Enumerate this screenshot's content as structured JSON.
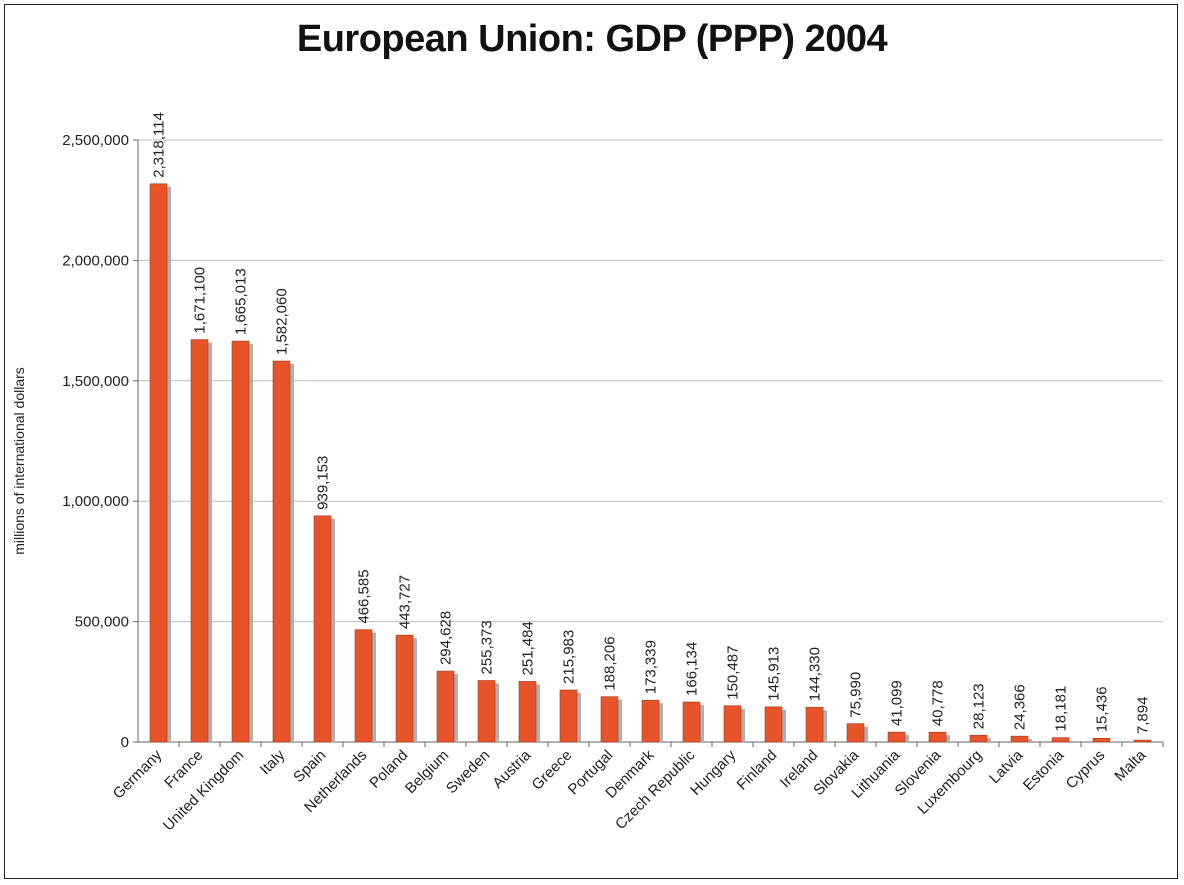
{
  "chart_data": {
    "type": "bar",
    "title": "European Union: GDP (PPP) 2004",
    "xlabel": "",
    "ylabel": "millions of international dollars",
    "ylim": [
      0,
      2500000
    ],
    "yticks": [
      0,
      500000,
      1000000,
      1500000,
      2000000,
      2500000
    ],
    "ytick_labels": [
      "0",
      "500,000",
      "1,000,000",
      "1,500,000",
      "2,000,000",
      "2,500,000"
    ],
    "grid": true,
    "bar_color": "#e8542a",
    "categories": [
      "Germany",
      "France",
      "United Kingdom",
      "Italy",
      "Spain",
      "Netherlands",
      "Poland",
      "Belgium",
      "Sweden",
      "Austria",
      "Greece",
      "Portugal",
      "Denmark",
      "Czech Republic",
      "Hungary",
      "Finland",
      "Ireland",
      "Slovakia",
      "Lithuania",
      "Slovenia",
      "Luxembourg",
      "Latvia",
      "Estonia",
      "Cyprus",
      "Malta"
    ],
    "values": [
      2318114,
      1671100,
      1665013,
      1582060,
      939153,
      466585,
      443727,
      294628,
      255373,
      251484,
      215983,
      188206,
      173339,
      166134,
      150487,
      145913,
      144330,
      75990,
      41099,
      40778,
      28123,
      24366,
      18181,
      15436,
      7894
    ],
    "value_labels": [
      "2,318,114",
      "1,671,100",
      "1,665,013",
      "1,582,060",
      "939,153",
      "466,585",
      "443,727",
      "294,628",
      "255,373",
      "251,484",
      "215,983",
      "188,206",
      "173,339",
      "166,134",
      "150,487",
      "145,913",
      "144,330",
      "75,990",
      "41,099",
      "40,778",
      "28,123",
      "24,366",
      "18,181",
      "15,436",
      "7,894"
    ]
  }
}
